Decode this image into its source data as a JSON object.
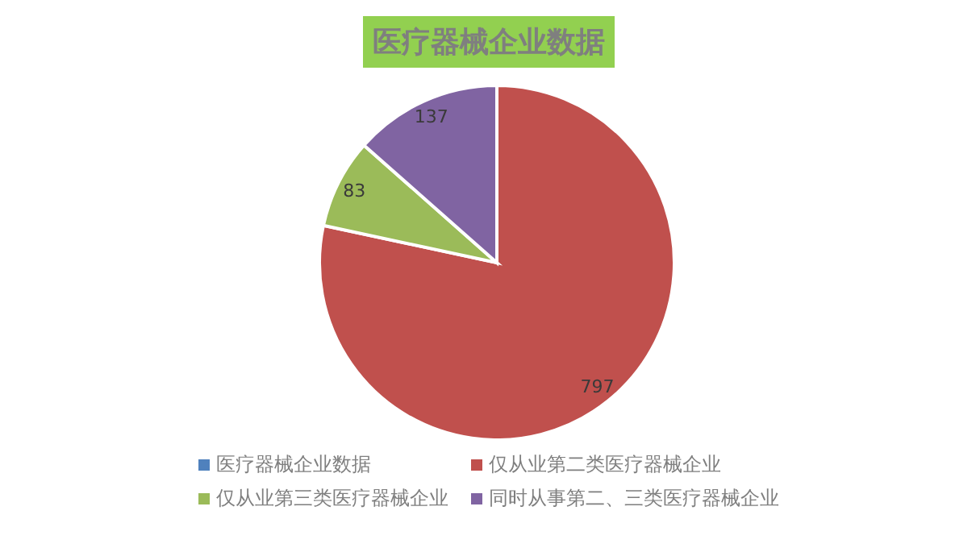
{
  "chart_data": {
    "type": "pie",
    "title": "医疗器械企业数据",
    "categories": [
      "医疗器械企业数据",
      "仅从业第二类医疗器械企业",
      "仅从业第三类医疗器械企业",
      "同时从事第二、三类医疗器械企业"
    ],
    "values": [
      0,
      797,
      83,
      137
    ],
    "colors": [
      "#4f81bd",
      "#c0504d",
      "#9bbb59",
      "#8064a2"
    ],
    "value_labels": [
      null,
      "797",
      "83",
      "137"
    ],
    "legend": "bottom"
  }
}
